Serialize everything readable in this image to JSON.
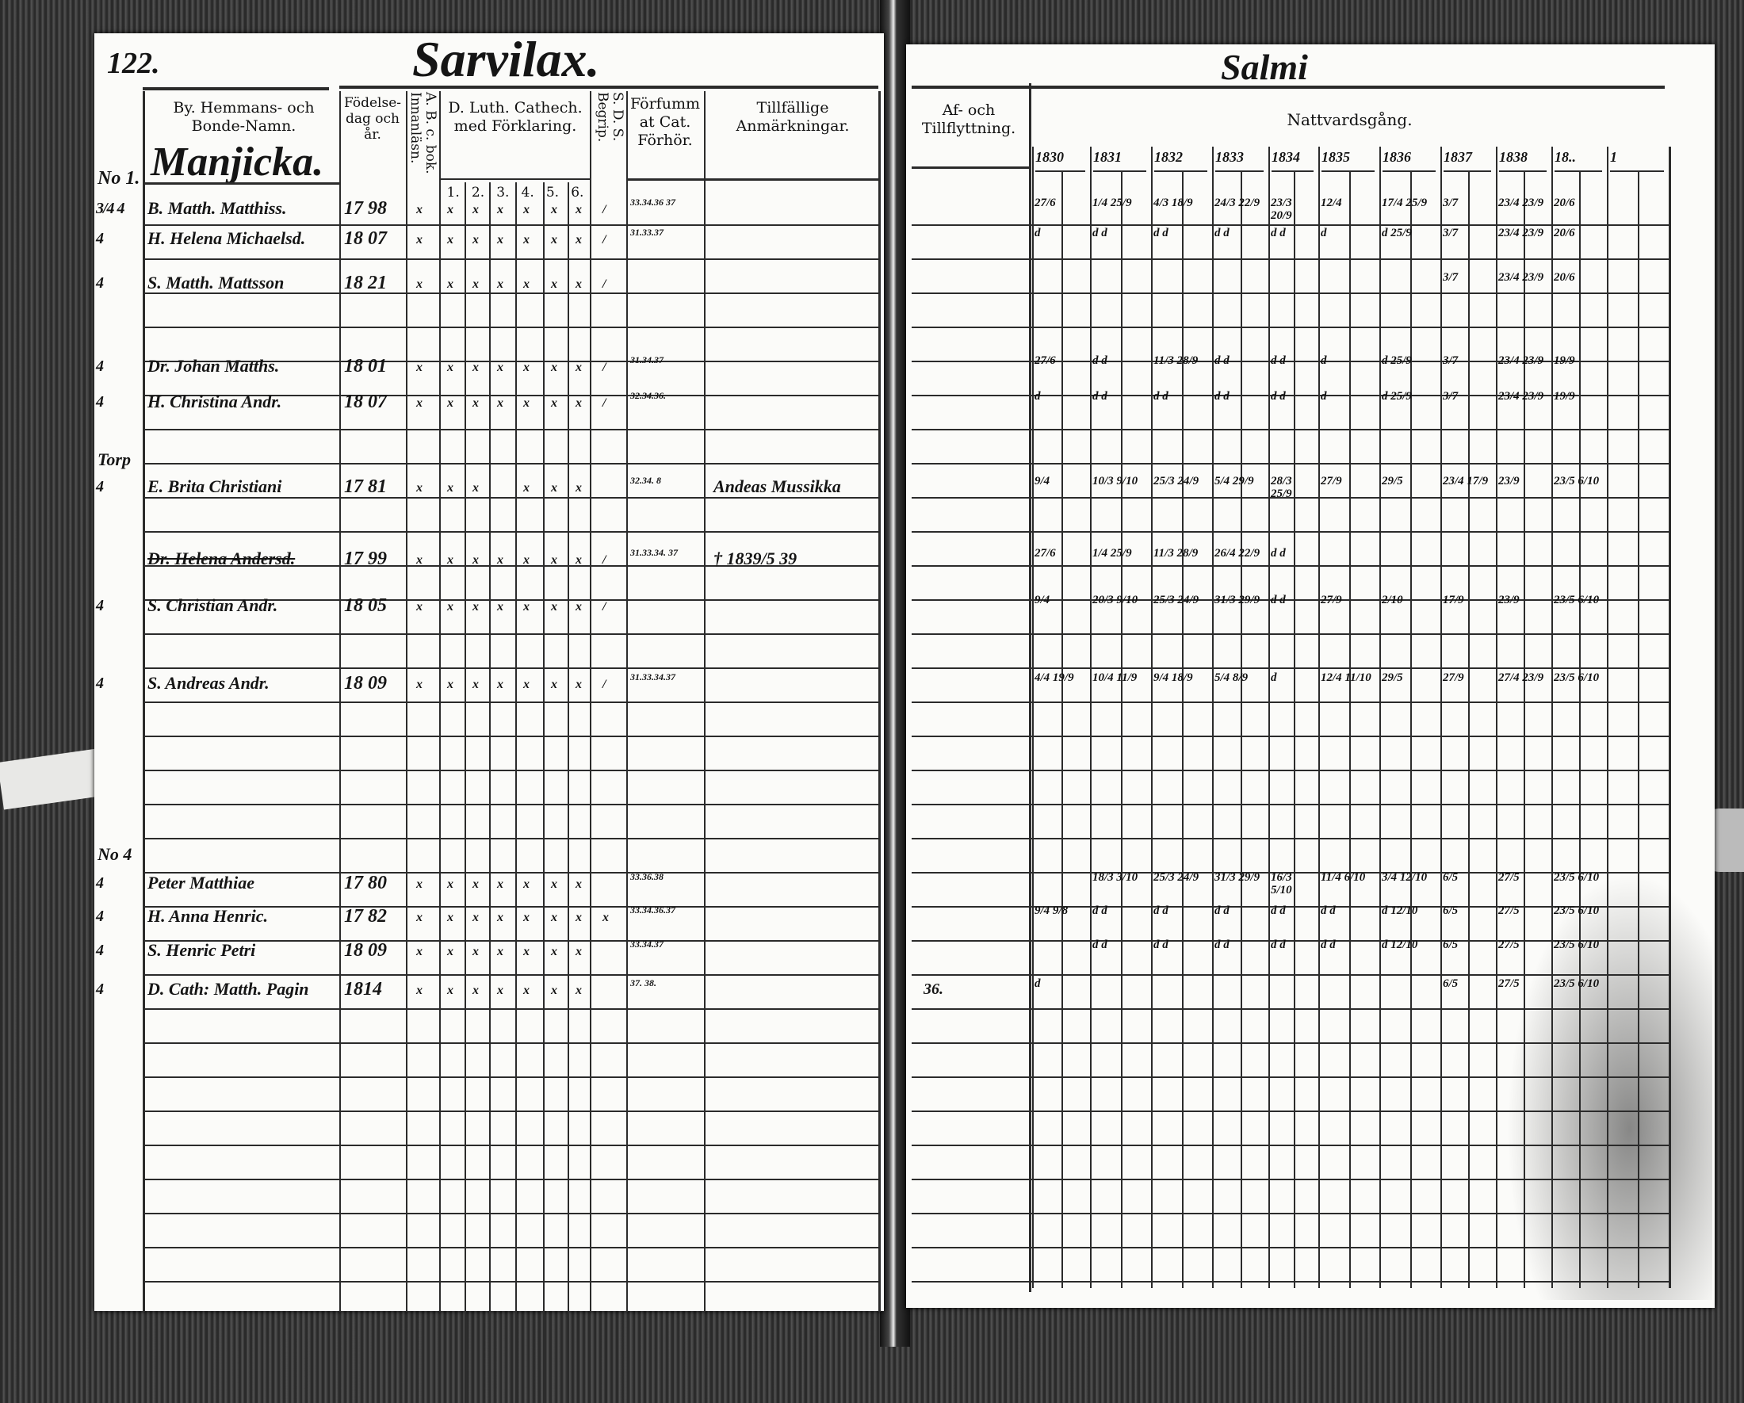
{
  "left_page": {
    "page_number": "122.",
    "village": "Sarvilax.",
    "headers": {
      "name": "By. Hemmans- och Bonde-Namn.",
      "birth": "Födelse-dag och år.",
      "abc": "A. B. c. bok. Innanläsn.",
      "catechism": "D. Luth. Cathech. med Förklaring.",
      "catechism_subcols": [
        "1.",
        "2.",
        "3.",
        "4.",
        "5.",
        "6."
      ],
      "sds": "S. D. S. Begrip.",
      "missed": "Förfummat Cat. Förhör.",
      "remarks": "Tillfällige Anmärkningar."
    },
    "farm_name": "Manjicka.",
    "margin_notes": [
      "No 1.",
      "Torp",
      "No 4"
    ],
    "rows": [
      {
        "margin": "3/4 4",
        "name": "B. Matth. Matthiss.",
        "birth": "17 98",
        "abc": "x",
        "cat": [
          "x",
          "x",
          "x",
          "x",
          "x",
          "x"
        ],
        "sds": "/",
        "missed": "33.34.36 37",
        "remark": "",
        "struck": false
      },
      {
        "margin": "4",
        "name": "H. Helena Michaelsd.",
        "birth": "18 07",
        "abc": "x",
        "cat": [
          "x",
          "x",
          "x",
          "x",
          "x",
          "x"
        ],
        "sds": "/",
        "missed": "31.33.37",
        "remark": "",
        "struck": false
      },
      {
        "margin": "4",
        "name": "S. Matth. Mattsson",
        "birth": "18 21",
        "abc": "x",
        "cat": [
          "x",
          "x",
          "x",
          "x",
          "x",
          "x"
        ],
        "sds": "/",
        "missed": "",
        "remark": "",
        "struck": false
      },
      {
        "margin": "4",
        "name": "Dr. Johan Matths.",
        "birth": "18 01",
        "abc": "x",
        "cat": [
          "x",
          "x",
          "x",
          "x",
          "x",
          "x"
        ],
        "sds": "/",
        "missed": "31.34.37",
        "remark": "",
        "struck": false
      },
      {
        "margin": "4",
        "name": "H. Christina Andr.",
        "birth": "18 07",
        "abc": "x",
        "cat": [
          "x",
          "x",
          "x",
          "x",
          "x",
          "x"
        ],
        "sds": "/",
        "missed": "32.34.36.",
        "remark": "",
        "struck": false
      },
      {
        "margin": "4",
        "name": "E. Brita Christiani",
        "birth": "17 81",
        "abc": "x",
        "cat": [
          "x",
          "x",
          "",
          "x",
          "x",
          "x"
        ],
        "sds": "",
        "missed": "32.34. 8",
        "remark": "Andeas Mussikka",
        "struck": false
      },
      {
        "margin": "",
        "name": "Dr. Helena Andersd.",
        "birth": "17 99",
        "abc": "x",
        "cat": [
          "x",
          "x",
          "x",
          "x",
          "x",
          "x"
        ],
        "sds": "/",
        "missed": "31.33.34. 37",
        "remark": "† 1839/5 39",
        "struck": true
      },
      {
        "margin": "4",
        "name": "S. Christian Andr.",
        "birth": "18 05",
        "abc": "x",
        "cat": [
          "x",
          "x",
          "x",
          "x",
          "x",
          "x"
        ],
        "sds": "/",
        "missed": "",
        "remark": "",
        "struck": false
      },
      {
        "margin": "4",
        "name": "S. Andreas Andr.",
        "birth": "18 09",
        "abc": "x",
        "cat": [
          "x",
          "x",
          "x",
          "x",
          "x",
          "x"
        ],
        "sds": "/",
        "missed": "31.33.34.37",
        "remark": "",
        "struck": false
      },
      {
        "margin": "4",
        "name": "Peter Matthiae",
        "birth": "17 80",
        "abc": "x",
        "cat": [
          "x",
          "x",
          "x",
          "x",
          "x",
          "x"
        ],
        "sds": "",
        "missed": "33.36.38",
        "remark": "",
        "struck": false
      },
      {
        "margin": "4",
        "name": "H. Anna Henric.",
        "birth": "17 82",
        "abc": "x",
        "cat": [
          "x",
          "x",
          "x",
          "x",
          "x",
          "x"
        ],
        "sds": "x",
        "missed": "33.34.36.37",
        "remark": "",
        "struck": false
      },
      {
        "margin": "4",
        "name": "S. Henric Petri",
        "birth": "18 09",
        "abc": "x",
        "cat": [
          "x",
          "x",
          "x",
          "x",
          "x",
          "x"
        ],
        "sds": "",
        "missed": "33.34.37",
        "remark": "",
        "struck": false
      },
      {
        "margin": "4",
        "name": "D. Cath: Matth. Pagin",
        "birth": "1814",
        "abc": "x",
        "cat": [
          "x",
          "x",
          "x",
          "x",
          "x",
          "x"
        ],
        "sds": "",
        "missed": "37. 38.",
        "remark": "",
        "struck": false
      }
    ]
  },
  "right_page": {
    "heading_scrawl": "Salmi",
    "headers": {
      "moves": "Af- och Tillflyttning.",
      "communion": "Nattvardsgång."
    },
    "years": [
      "1830",
      "1831",
      "1832",
      "1833",
      "1834",
      "1835",
      "1836",
      "1837",
      "1838",
      "18..",
      "1"
    ],
    "rows": [
      {
        "move": "",
        "cells": [
          "27/6",
          "1/4 25/9",
          "4/3 18/9",
          "24/3 22/9",
          "23/3 20/9",
          "12/4",
          "17/4 25/9",
          "3/7",
          "23/4 23/9",
          "20/6"
        ]
      },
      {
        "move": "",
        "cells": [
          "d",
          "d d",
          "d d",
          "d d",
          "d d",
          "d",
          "d 25/9",
          "3/7",
          "23/4 23/9",
          "20/6"
        ]
      },
      {
        "move": "",
        "cells": [
          "",
          "",
          "",
          "",
          "",
          "",
          "",
          "3/7",
          "23/4 23/9",
          "20/6"
        ]
      },
      {
        "move": "",
        "cells": [
          "27/6",
          "d d",
          "11/3 28/9",
          "d d",
          "d d",
          "d",
          "d 25/9",
          "3/7",
          "23/4 23/9",
          "19/9"
        ]
      },
      {
        "move": "",
        "cells": [
          "d",
          "d d",
          "d d",
          "d d",
          "d d",
          "d",
          "d 25/9",
          "3/7",
          "23/4 23/9",
          "19/9"
        ]
      },
      {
        "move": "",
        "cells": [
          "9/4",
          "10/3 9/10",
          "25/3 24/9",
          "5/4 29/9",
          "28/3 25/9",
          "27/9",
          "29/5",
          "23/4 17/9",
          "23/9",
          "23/5 6/10"
        ]
      },
      {
        "move": "",
        "cells": [
          "27/6",
          "1/4 25/9",
          "11/3 28/9",
          "26/4 22/9",
          "d d",
          "",
          "",
          "",
          "",
          ""
        ]
      },
      {
        "move": "",
        "cells": [
          "9/4",
          "20/3 9/10",
          "25/3 24/9",
          "31/3 29/9",
          "d d",
          "27/9",
          "2/10",
          "17/9",
          "23/9",
          "23/5 6/10"
        ]
      },
      {
        "move": "",
        "cells": [
          "4/4 19/9",
          "10/4 11/9",
          "9/4 18/9",
          "5/4 8/9",
          "d",
          "12/4 11/10",
          "29/5",
          "27/9",
          "27/4 23/9",
          "23/5 6/10"
        ]
      },
      {
        "move": "",
        "cells": [
          "",
          "18/3 3/10",
          "25/3 24/9",
          "31/3 29/9",
          "16/3 5/10",
          "11/4 6/10",
          "3/4 12/10",
          "6/5",
          "27/5",
          "23/5 6/10"
        ]
      },
      {
        "move": "",
        "cells": [
          "9/4 9/8",
          "d d",
          "d d",
          "d d",
          "d d",
          "d d",
          "d 12/10",
          "6/5",
          "27/5",
          "23/5 6/10"
        ]
      },
      {
        "move": "",
        "cells": [
          "",
          "d d",
          "d d",
          "d d",
          "d d",
          "d d",
          "d 12/10",
          "6/5",
          "27/5",
          "23/5 6/10"
        ]
      },
      {
        "move": "36.",
        "cells": [
          "d",
          "",
          "",
          "",
          "",
          "",
          "",
          "6/5",
          "27/5",
          "23/5 6/10"
        ]
      }
    ]
  }
}
